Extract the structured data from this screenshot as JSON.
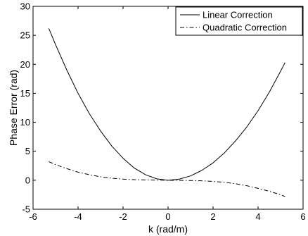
{
  "chart_data": {
    "type": "line",
    "xlabel": "k (rad/m)",
    "ylabel": "Phase Error (rad)",
    "xlim": [
      -6,
      6
    ],
    "ylim": [
      -5,
      30
    ],
    "xticks": [
      -6,
      -4,
      -2,
      0,
      2,
      4,
      6
    ],
    "yticks": [
      -5,
      0,
      5,
      10,
      15,
      20,
      25,
      30
    ],
    "grid": false,
    "legend_position": "top-right",
    "series": [
      {
        "name": "Linear Correction",
        "style": "solid",
        "color": "#000000",
        "x": [
          -5.3,
          -5.0,
          -4.5,
          -4.0,
          -3.5,
          -3.0,
          -2.5,
          -2.0,
          -1.5,
          -1.0,
          -0.5,
          0.0,
          0.5,
          1.0,
          1.5,
          2.0,
          2.5,
          3.0,
          3.5,
          4.0,
          4.5,
          5.0,
          5.2
        ],
        "y": [
          26.2,
          23.4,
          19.0,
          15.0,
          11.5,
          8.5,
          5.9,
          3.8,
          2.1,
          0.95,
          0.24,
          0.0,
          0.2,
          0.75,
          1.7,
          3.0,
          4.7,
          6.8,
          9.2,
          12.0,
          15.2,
          18.8,
          20.3
        ]
      },
      {
        "name": "Quadratic Correction",
        "style": "dash-dot",
        "color": "#000000",
        "x": [
          -5.3,
          -5.0,
          -4.5,
          -4.0,
          -3.5,
          -3.0,
          -2.5,
          -2.0,
          -1.5,
          -1.0,
          -0.5,
          0.0,
          0.5,
          1.0,
          1.5,
          2.0,
          2.5,
          3.0,
          3.5,
          4.0,
          4.5,
          5.0,
          5.2
        ],
        "y": [
          3.2,
          2.7,
          2.0,
          1.4,
          0.95,
          0.6,
          0.35,
          0.2,
          0.1,
          0.05,
          0.02,
          0.0,
          -0.02,
          -0.05,
          -0.1,
          -0.2,
          -0.35,
          -0.6,
          -0.95,
          -1.4,
          -1.9,
          -2.5,
          -2.8
        ]
      }
    ]
  }
}
